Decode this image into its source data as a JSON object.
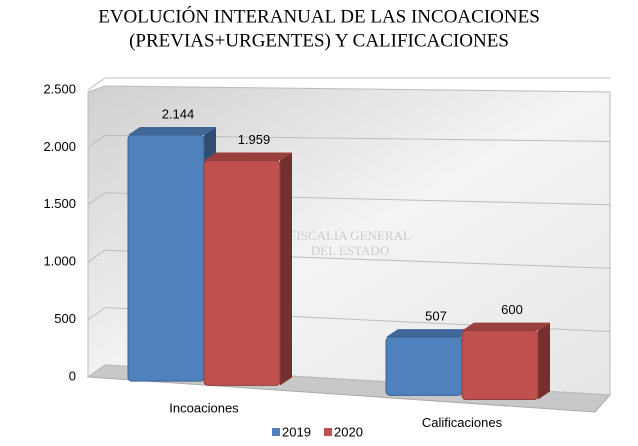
{
  "chart_data": {
    "type": "bar3d",
    "title": [
      "EVOLUCIÓN INTERANUAL DE LAS INCOACIONES",
      "(PREVIAS+URGENTES) Y CALIFICACIONES"
    ],
    "watermark": [
      "FISCALIA GENERAL",
      "DEL ESTADO"
    ],
    "categories": [
      "Incoaciones",
      "Calificaciones"
    ],
    "series": [
      {
        "name": "2019",
        "color": "#4f81bd",
        "values": [
          2144,
          507
        ],
        "value_labels": [
          "2.144",
          "507"
        ]
      },
      {
        "name": "2020",
        "color": "#c0504d",
        "values": [
          1959,
          600
        ],
        "value_labels": [
          "1.959",
          "600"
        ]
      }
    ],
    "ylim": [
      0,
      2500
    ],
    "yticks": [
      0,
      500,
      {
        "value": 1000,
        "label": "1.000"
      },
      {
        "value": 1500,
        "label": "1.500"
      },
      {
        "value": 2000,
        "label": "2.000"
      },
      {
        "value": 2500,
        "label": "2.500"
      }
    ],
    "grid": true,
    "legend": "bottom"
  }
}
